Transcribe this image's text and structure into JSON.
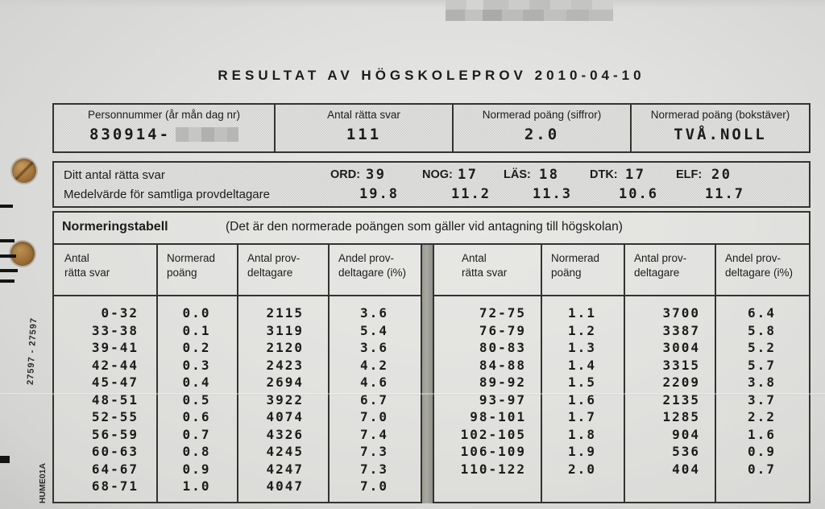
{
  "title": "RESULTAT AV HÖGSKOLEPROV 2010-04-10",
  "header_box": {
    "cells": [
      {
        "label": "Personnummer (år mån dag nr)",
        "value": "830914-"
      },
      {
        "label": "Antal rätta svar",
        "value": "111"
      },
      {
        "label": "Normerad poäng (siffror)",
        "value": "2.0"
      },
      {
        "label": "Normerad poäng (bokstäver)",
        "value": "TVÅ.NOLL"
      }
    ]
  },
  "scores_box": {
    "row1_label": "Ditt antal rätta svar",
    "row2_label": "Medelvärde för samtliga provdeltagare",
    "subjects": [
      {
        "code": "ORD:",
        "score": "39",
        "mean": "19.8"
      },
      {
        "code": "NOG:",
        "score": "17",
        "mean": "11.2"
      },
      {
        "code": "LÄS:",
        "score": "18",
        "mean": "11.3"
      },
      {
        "code": "DTK:",
        "score": "17",
        "mean": "10.6"
      },
      {
        "code": "ELF:",
        "score": "20",
        "mean": "11.7"
      }
    ]
  },
  "norm_table": {
    "title": "Normeringstabell",
    "subtitle": "(Det är den normerade poängen som gäller vid antagning till högskolan)",
    "columns": [
      {
        "line1": "Antal",
        "line2": "rätta svar"
      },
      {
        "line1": "Normerad",
        "line2": "poäng"
      },
      {
        "line1": "Antal prov-",
        "line2": "deltagare"
      },
      {
        "line1": "Andel prov-",
        "line2": "deltagare (i%)"
      }
    ],
    "left_rows": [
      [
        "0-32",
        "0.0",
        "2115",
        "3.6"
      ],
      [
        "33-38",
        "0.1",
        "3119",
        "5.4"
      ],
      [
        "39-41",
        "0.2",
        "2120",
        "3.6"
      ],
      [
        "42-44",
        "0.3",
        "2423",
        "4.2"
      ],
      [
        "45-47",
        "0.4",
        "2694",
        "4.6"
      ],
      [
        "48-51",
        "0.5",
        "3922",
        "6.7"
      ],
      [
        "52-55",
        "0.6",
        "4074",
        "7.0"
      ],
      [
        "56-59",
        "0.7",
        "4326",
        "7.4"
      ],
      [
        "60-63",
        "0.8",
        "4245",
        "7.3"
      ],
      [
        "64-67",
        "0.9",
        "4247",
        "7.3"
      ],
      [
        "68-71",
        "1.0",
        "4047",
        "7.0"
      ]
    ],
    "right_rows": [
      [
        "72-75",
        "1.1",
        "3700",
        "6.4"
      ],
      [
        "76-79",
        "1.2",
        "3387",
        "5.8"
      ],
      [
        "80-83",
        "1.3",
        "3004",
        "5.2"
      ],
      [
        "84-88",
        "1.4",
        "3315",
        "5.7"
      ],
      [
        "89-92",
        "1.5",
        "2209",
        "3.8"
      ],
      [
        "93-97",
        "1.6",
        "2135",
        "3.7"
      ],
      [
        "98-101",
        "1.7",
        "1285",
        "2.2"
      ],
      [
        "102-105",
        "1.8",
        "904",
        "1.6"
      ],
      [
        "106-109",
        "1.9",
        "536",
        "0.9"
      ],
      [
        "110-122",
        "2.0",
        "404",
        "0.7"
      ]
    ]
  },
  "margin": {
    "serial": "27597 - 27597",
    "form_code": "HUME01A"
  },
  "colors": {
    "paper": "#dfdfdd",
    "ink": "#1c1c1a",
    "border": "#33332f",
    "divider_bar": "#9e9e9c",
    "hole_punch": "#a3763c"
  }
}
